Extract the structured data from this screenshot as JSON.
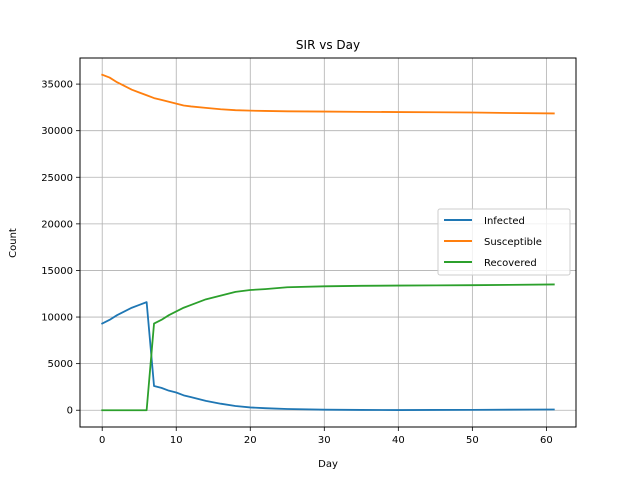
{
  "chart_data": {
    "type": "line",
    "title": "SIR vs Day",
    "xlabel": "Day",
    "ylabel": "Count",
    "xlim": [
      -3,
      64
    ],
    "ylim": [
      -1800,
      37800
    ],
    "xticks": [
      0,
      10,
      20,
      30,
      40,
      50,
      60
    ],
    "yticks": [
      0,
      5000,
      10000,
      15000,
      20000,
      25000,
      30000,
      35000
    ],
    "grid": true,
    "legend_position": "center-right",
    "series": [
      {
        "name": "Infected",
        "color": "#1f77b4",
        "x": [
          0,
          1,
          2,
          3,
          4,
          5,
          6,
          7,
          8,
          9,
          10,
          11,
          12,
          14,
          16,
          18,
          20,
          22,
          25,
          30,
          35,
          40,
          45,
          50,
          55,
          61
        ],
        "y": [
          9300,
          9700,
          10200,
          10600,
          11000,
          11300,
          11600,
          2600,
          2400,
          2100,
          1900,
          1600,
          1400,
          1000,
          700,
          450,
          300,
          220,
          130,
          60,
          30,
          20,
          30,
          40,
          60,
          80
        ]
      },
      {
        "name": "Susceptible",
        "color": "#ff7f0e",
        "x": [
          0,
          1,
          2,
          3,
          4,
          5,
          6,
          7,
          8,
          9,
          10,
          11,
          12,
          14,
          16,
          18,
          20,
          22,
          25,
          30,
          35,
          40,
          45,
          50,
          55,
          61
        ],
        "y": [
          36000,
          35700,
          35200,
          34800,
          34400,
          34100,
          33800,
          33500,
          33300,
          33100,
          32900,
          32700,
          32600,
          32450,
          32300,
          32200,
          32150,
          32120,
          32080,
          32050,
          32020,
          32000,
          31980,
          31950,
          31900,
          31850
        ]
      },
      {
        "name": "Recovered",
        "color": "#2ca02c",
        "x": [
          0,
          1,
          2,
          3,
          4,
          5,
          6,
          7,
          8,
          9,
          10,
          11,
          12,
          14,
          16,
          18,
          20,
          22,
          25,
          30,
          35,
          40,
          45,
          50,
          55,
          61
        ],
        "y": [
          0,
          0,
          0,
          0,
          0,
          0,
          0,
          9300,
          9700,
          10200,
          10600,
          11000,
          11300,
          11900,
          12300,
          12700,
          12900,
          13000,
          13200,
          13300,
          13350,
          13380,
          13400,
          13420,
          13450,
          13500
        ]
      }
    ]
  }
}
